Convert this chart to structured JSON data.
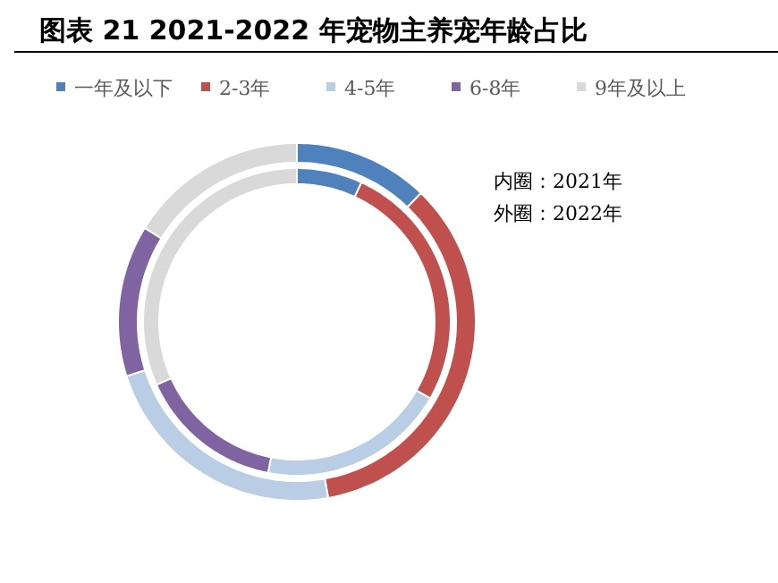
{
  "chart_data": {
    "type": "donut",
    "title": "图表 21 2021-2022 年宠物主养宠年龄占比",
    "categories": [
      "一年及以下",
      "2-3年",
      "4-5年",
      "6-8年",
      "9年及以上"
    ],
    "colors": [
      "#4f81bd",
      "#c0504d",
      "#b9cde5",
      "#8064a2",
      "#d9d9d9"
    ],
    "series": [
      {
        "values": [
          6.9,
          26.4,
          19.7,
          15.3,
          31.7
        ]
      },
      {
        "values": [
          12.2,
          35.0,
          22.9,
          13.7,
          16.2
        ]
      }
    ],
    "legend": "top",
    "annotations": [
      "内圈：2021年",
      "外圈：2022年"
    ]
  }
}
